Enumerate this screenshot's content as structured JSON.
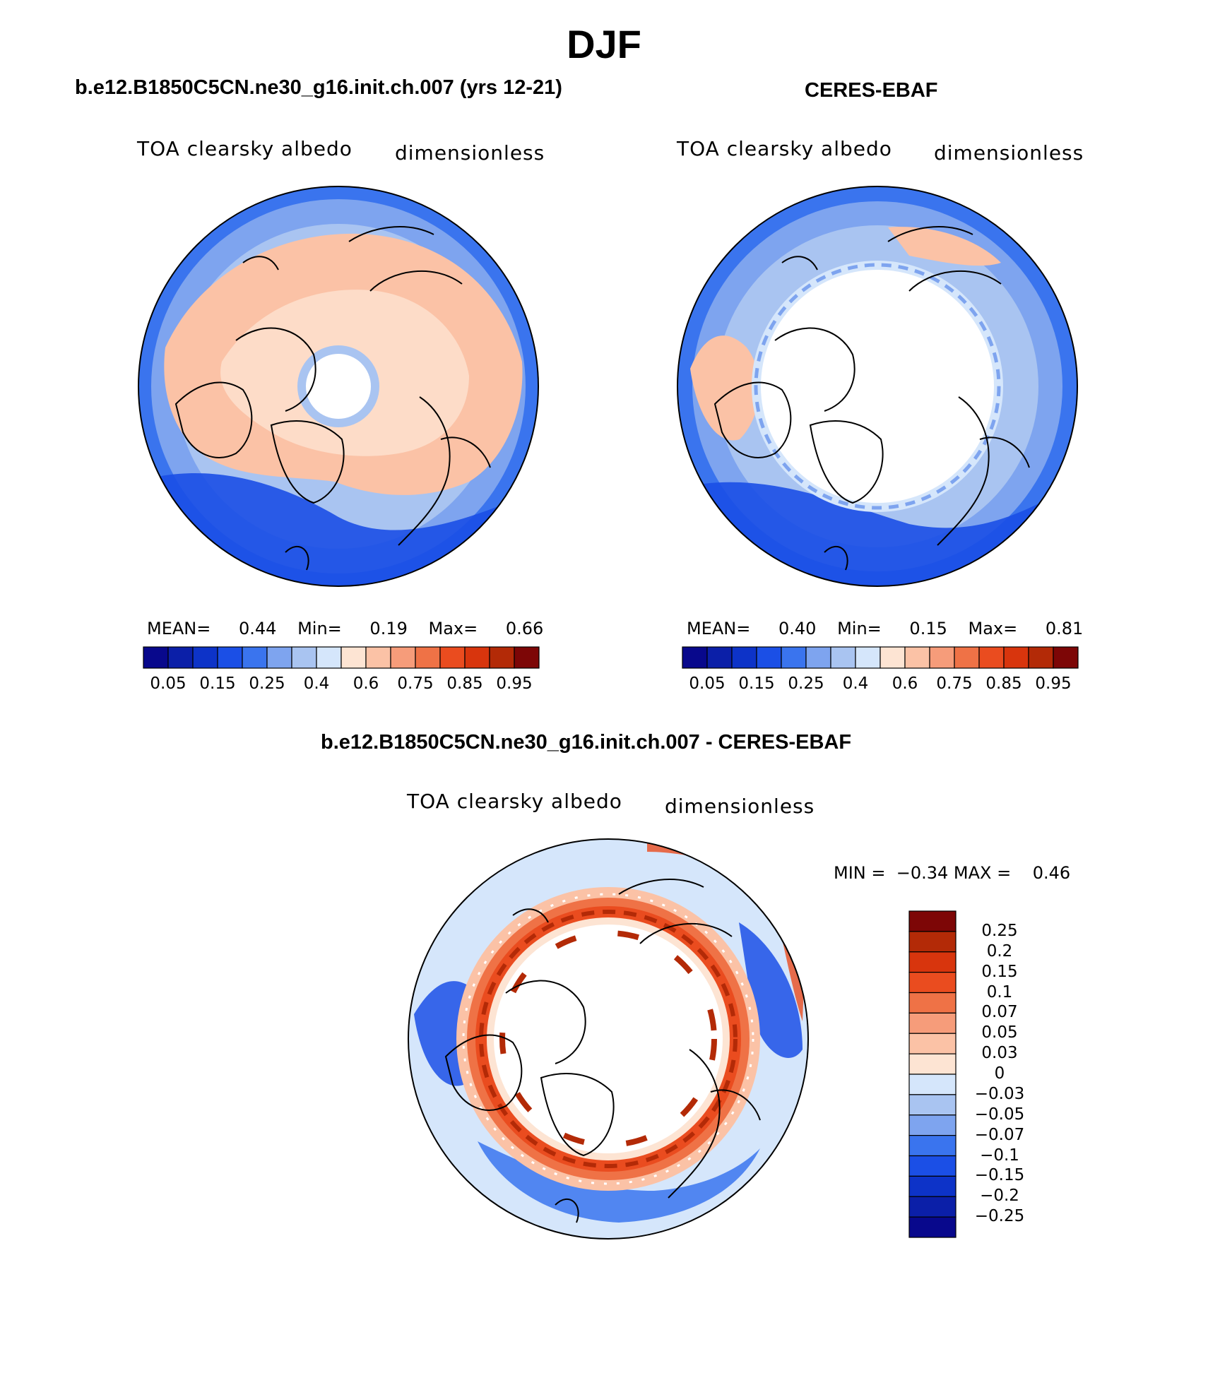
{
  "title": "DJF",
  "panels": [
    {
      "title": "b.e12.B1850C5CN.ne30_g16.init.ch.007 (yrs 12-21)",
      "left_label": "TOA clearsky albedo",
      "right_label": "dimensionless",
      "stats": {
        "mean_label": "MEAN=",
        "mean": "0.44",
        "min_label": "Min=",
        "min": "0.19",
        "max_label": "Max=",
        "max": "0.66"
      }
    },
    {
      "title": "CERES-EBAF",
      "left_label": "TOA clearsky albedo",
      "right_label": "dimensionless",
      "stats": {
        "mean_label": "MEAN=",
        "mean": "0.40",
        "min_label": "Min=",
        "min": "0.15",
        "max_label": "Max=",
        "max": "0.81"
      }
    }
  ],
  "diff": {
    "title": "b.e12.B1850C5CN.ne30_g16.init.ch.007 - CERES-EBAF",
    "left_label": "TOA clearsky albedo",
    "right_label": "dimensionless",
    "minmax": "MIN =  −0.34 MAX =    0.46"
  },
  "colorbar_top": {
    "labels": [
      "0.05",
      "0.15",
      "0.25",
      "0.4",
      "0.6",
      "0.75",
      "0.85",
      "0.95"
    ],
    "colors": [
      "#08088c",
      "#0b1fa8",
      "#0d33c8",
      "#1b4fe6",
      "#3a74ee",
      "#7ea4ef",
      "#a9c4f1",
      "#d5e6fb",
      "#fde4d3",
      "#fbc2a6",
      "#f69c7a",
      "#ef7246",
      "#ea4c1f",
      "#d8350d",
      "#b32a07",
      "#7d0606"
    ]
  },
  "colorbar_diff": {
    "labels": [
      "0.25",
      "0.2",
      "0.15",
      "0.1",
      "0.07",
      "0.05",
      "0.03",
      "0",
      "−0.03",
      "−0.05",
      "−0.07",
      "−0.1",
      "−0.15",
      "−0.2",
      "−0.25"
    ],
    "colors": [
      "#7d0606",
      "#b32a07",
      "#d8350d",
      "#ea4c1f",
      "#ef7246",
      "#f69c7a",
      "#fbc2a6",
      "#fde4d3",
      "#d5e6fb",
      "#a9c4f1",
      "#7ea4ef",
      "#3a74ee",
      "#1b4fe6",
      "#0d33c8",
      "#0b1fa8",
      "#08088c"
    ]
  }
}
